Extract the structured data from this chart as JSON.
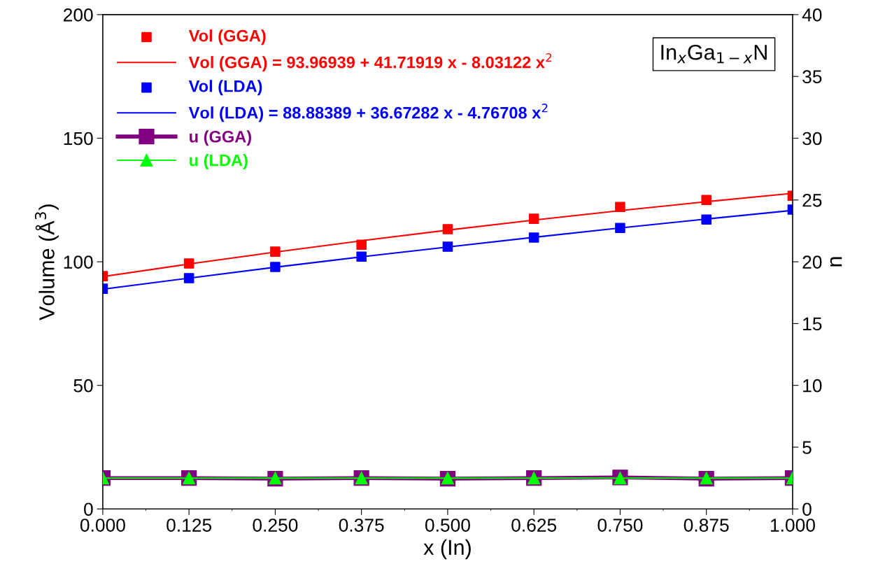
{
  "chart_data": {
    "type": "scatter",
    "xlabel": "x (In)",
    "ylabel": "Volume (Å$^{3}$)",
    "y2label": "n",
    "x": [
      0,
      0.125,
      0.25,
      0.375,
      0.5,
      0.625,
      0.75,
      0.875,
      1
    ],
    "xlim": [
      0,
      1
    ],
    "xticks": [
      {
        "value": 0,
        "label": "0.000"
      },
      {
        "value": 0.125,
        "label": "0.125"
      },
      {
        "value": 0.25,
        "label": "0.250"
      },
      {
        "value": 0.375,
        "label": "0.375"
      },
      {
        "value": 0.5,
        "label": "0.500"
      },
      {
        "value": 0.625,
        "label": "0.625"
      },
      {
        "value": 0.75,
        "label": "0.750"
      },
      {
        "value": 0.875,
        "label": "0.875"
      },
      {
        "value": 1,
        "label": "1.000"
      }
    ],
    "ylim": [
      0,
      200
    ],
    "yticks": [
      0,
      50,
      100,
      150,
      200
    ],
    "y2lim": [
      0,
      40
    ],
    "y2ticks": [
      0,
      5,
      10,
      15,
      20,
      25,
      30,
      35,
      40
    ],
    "legend": "top left",
    "grid": false,
    "annotations": [
      "In$_{x}$Ga$_{1−x}$N"
    ],
    "series": [
      {
        "name": "Vol (GGA)",
        "marker": "square",
        "color": "#ff0000",
        "values": [
          94.2,
          99.3,
          104.1,
          106.9,
          113.2,
          117.4,
          122.2,
          125.0,
          126.7
        ]
      },
      {
        "name": "Vol (GGA) = 93.96939 + 41.71919 x - 8.03122 x$^{2}$",
        "type": "line",
        "marker": "none",
        "color": "#ff0000",
        "values": [
          94.0,
          99.1,
          103.9,
          108.5,
          112.8,
          116.9,
          120.7,
          124.3,
          127.7
        ]
      },
      {
        "name": "Vol (LDA)",
        "marker": "square",
        "color": "#0000ff",
        "values": [
          89.1,
          93.4,
          97.9,
          102.1,
          106.1,
          109.8,
          113.7,
          117.1,
          121.1
        ]
      },
      {
        "name": "Vol (LDA) = 88.88389 + 36.67282 x - 4.76708 x$^{2}$",
        "type": "line",
        "marker": "none",
        "color": "#0000ff",
        "values": [
          88.9,
          93.4,
          97.8,
          102.0,
          106.0,
          109.9,
          113.7,
          117.3,
          120.8
        ]
      },
      {
        "name": "u (GGA)",
        "type": "line",
        "marker": "square",
        "color": "#800080",
        "axis": "y2",
        "values": [
          2.5,
          2.5,
          2.45,
          2.5,
          2.45,
          2.5,
          2.55,
          2.45,
          2.5
        ]
      },
      {
        "name": "u (LDA)",
        "type": "line",
        "marker": "triangle",
        "color": "#00ff00",
        "axis": "y2",
        "values": [
          2.5,
          2.5,
          2.5,
          2.5,
          2.5,
          2.5,
          2.5,
          2.5,
          2.5
        ]
      }
    ]
  }
}
